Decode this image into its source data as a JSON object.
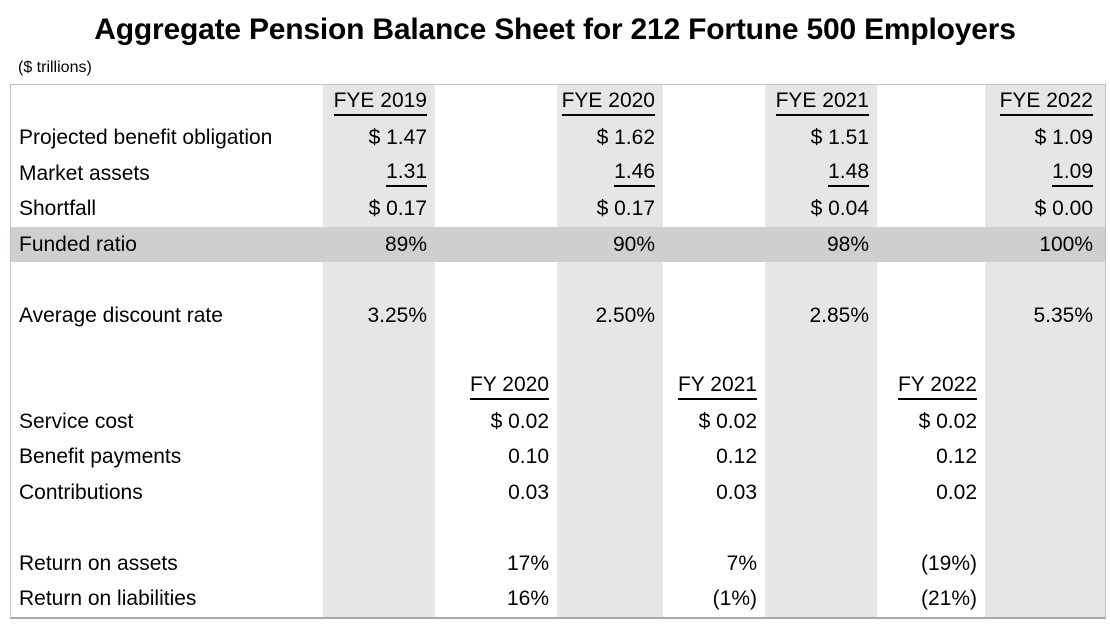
{
  "title": "Aggregate Pension Balance Sheet for 212 Fortune 500 Employers",
  "units_note": "($ trillions)",
  "colors": {
    "column_fill": "#e7e6e6",
    "highlight_row_fill": "#d0cece",
    "text": "#000000",
    "table_border": "#c3c1c1"
  },
  "balance_sheet": {
    "col_headers": [
      "FYE 2019",
      "FYE 2020",
      "FYE 2021",
      "FYE 2022"
    ],
    "rows": [
      {
        "label": "Projected benefit obligation",
        "values": [
          "$ 1.47",
          "$ 1.62",
          "$ 1.51",
          "$ 1.09"
        ]
      },
      {
        "label": "Market assets",
        "values": [
          "1.31",
          "1.46",
          "1.48",
          "1.09"
        ],
        "underlined": true
      },
      {
        "label": "Shortfall",
        "values": [
          "$ 0.17",
          "$ 0.17",
          "$ 0.04",
          "$ 0.00"
        ]
      },
      {
        "label": "Funded ratio",
        "values": [
          "89%",
          "90%",
          "98%",
          "100%"
        ],
        "highlighted": true
      }
    ],
    "discount_rate": {
      "label": "Average discount rate",
      "values": [
        "3.25%",
        "2.50%",
        "2.85%",
        "5.35%"
      ]
    }
  },
  "flows": {
    "col_headers": [
      "FY 2020",
      "FY 2021",
      "FY 2022"
    ],
    "rows": [
      {
        "label": "Service cost",
        "values": [
          "$ 0.02",
          "$ 0.02",
          "$ 0.02"
        ]
      },
      {
        "label": "Benefit payments",
        "values": [
          "0.10",
          "0.12",
          "0.12"
        ]
      },
      {
        "label": "Contributions",
        "values": [
          "0.03",
          "0.03",
          "0.02"
        ]
      }
    ],
    "returns": [
      {
        "label": "Return on assets",
        "values": [
          "17%",
          "7%",
          "(19%)"
        ]
      },
      {
        "label": "Return on liabilities",
        "values": [
          "16%",
          "(1%)",
          "(21%)"
        ]
      }
    ]
  }
}
